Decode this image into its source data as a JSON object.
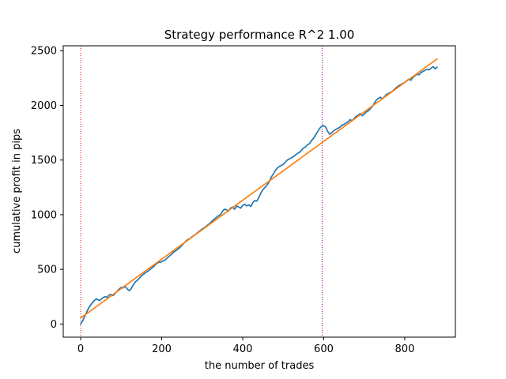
{
  "chart_data": {
    "type": "line",
    "title": "Strategy performance R^2 1.00",
    "xlabel": "the number of trades",
    "ylabel": "cumulative profit in pips",
    "xlim": [
      -43,
      925
    ],
    "ylim": [
      -120,
      2545
    ],
    "x_ticks": [
      0,
      200,
      400,
      600,
      800
    ],
    "y_ticks": [
      0,
      500,
      1000,
      1500,
      2000,
      2500
    ],
    "grid": false,
    "legend": "none",
    "series": [
      {
        "color": "#1f77b4",
        "x": [
          0,
          5,
          10,
          15,
          20,
          25,
          30,
          35,
          40,
          45,
          50,
          55,
          60,
          65,
          70,
          75,
          80,
          85,
          90,
          95,
          100,
          105,
          110,
          115,
          120,
          125,
          130,
          135,
          140,
          145,
          150,
          155,
          160,
          165,
          170,
          175,
          180,
          185,
          190,
          195,
          200,
          205,
          210,
          215,
          220,
          225,
          230,
          235,
          240,
          245,
          250,
          255,
          260,
          265,
          270,
          275,
          280,
          285,
          290,
          295,
          300,
          305,
          310,
          315,
          320,
          325,
          330,
          335,
          340,
          345,
          350,
          355,
          360,
          365,
          370,
          375,
          380,
          385,
          390,
          395,
          400,
          405,
          410,
          415,
          420,
          425,
          430,
          435,
          440,
          445,
          450,
          455,
          460,
          465,
          470,
          475,
          480,
          485,
          490,
          495,
          500,
          505,
          510,
          515,
          520,
          525,
          530,
          535,
          540,
          545,
          550,
          555,
          560,
          565,
          570,
          575,
          580,
          585,
          590,
          595,
          600,
          605,
          610,
          615,
          620,
          625,
          630,
          635,
          640,
          645,
          650,
          655,
          660,
          665,
          670,
          675,
          680,
          685,
          690,
          695,
          700,
          705,
          710,
          715,
          720,
          725,
          730,
          735,
          740,
          745,
          750,
          755,
          760,
          765,
          770,
          775,
          780,
          785,
          790,
          795,
          800,
          805,
          810,
          815,
          820,
          825,
          830,
          835,
          840,
          845,
          850,
          855,
          860,
          865,
          870,
          875,
          880
        ],
        "y": [
          0,
          30,
          70,
          110,
          150,
          175,
          200,
          220,
          230,
          215,
          225,
          240,
          250,
          245,
          265,
          270,
          260,
          280,
          300,
          320,
          335,
          330,
          345,
          320,
          305,
          325,
          360,
          385,
          400,
          420,
          440,
          455,
          470,
          480,
          495,
          510,
          525,
          545,
          560,
          565,
          570,
          580,
          590,
          610,
          625,
          640,
          660,
          670,
          685,
          700,
          720,
          740,
          760,
          775,
          780,
          800,
          810,
          825,
          840,
          855,
          870,
          880,
          895,
          910,
          925,
          945,
          960,
          975,
          990,
          1000,
          1030,
          1050,
          1045,
          1035,
          1060,
          1070,
          1050,
          1080,
          1070,
          1060,
          1085,
          1095,
          1080,
          1090,
          1075,
          1110,
          1130,
          1125,
          1160,
          1200,
          1230,
          1250,
          1270,
          1300,
          1340,
          1370,
          1400,
          1425,
          1440,
          1450,
          1460,
          1480,
          1500,
          1510,
          1520,
          1530,
          1545,
          1560,
          1570,
          1590,
          1610,
          1620,
          1640,
          1650,
          1680,
          1700,
          1730,
          1760,
          1790,
          1810,
          1815,
          1800,
          1760,
          1735,
          1750,
          1770,
          1780,
          1790,
          1800,
          1820,
          1825,
          1840,
          1850,
          1870,
          1860,
          1880,
          1900,
          1910,
          1925,
          1905,
          1920,
          1940,
          1950,
          1970,
          1990,
          2020,
          2050,
          2065,
          2075,
          2060,
          2080,
          2100,
          2110,
          2120,
          2130,
          2150,
          2165,
          2180,
          2190,
          2200,
          2210,
          2225,
          2240,
          2230,
          2255,
          2270,
          2285,
          2280,
          2300,
          2310,
          2320,
          2330,
          2325,
          2340,
          2355,
          2335,
          2350
        ]
      },
      {
        "color": "#ff7f0e",
        "x": [
          0,
          880
        ],
        "y": [
          55,
          2425
        ]
      }
    ],
    "vlines": [
      {
        "x": 0,
        "color": "#ff0000",
        "style": "dotted"
      },
      {
        "x": 596,
        "color": "#800080",
        "style": "dotted"
      }
    ]
  }
}
